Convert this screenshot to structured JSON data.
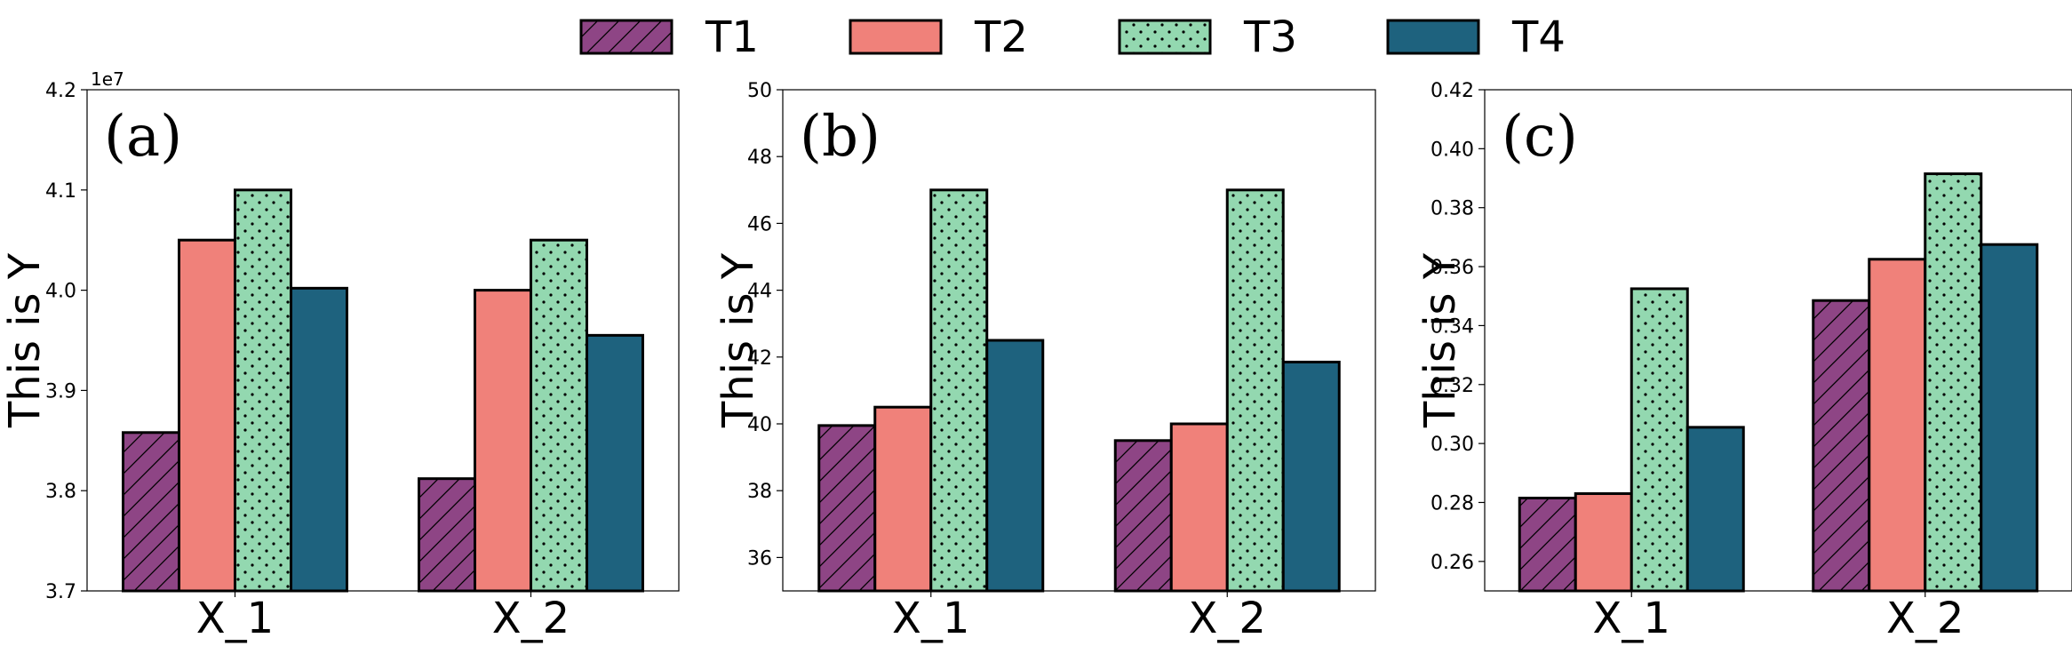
{
  "colors": {
    "T1": "#8e4585",
    "T2": "#f0817a",
    "T3": "#93d8b0",
    "T4": "#1e627e",
    "edge": "#000000"
  },
  "legend": [
    {
      "name": "T1",
      "hatch": "diagonal"
    },
    {
      "name": "T2",
      "hatch": "none"
    },
    {
      "name": "T3",
      "hatch": "dots"
    },
    {
      "name": "T4",
      "hatch": "none"
    }
  ],
  "chart_data": [
    {
      "type": "bar",
      "panel": "(a)",
      "ylabel": "This is Y",
      "offset_text": "1e7",
      "categories": [
        "X_1",
        "X_2"
      ],
      "ylim": [
        3.7,
        4.2
      ],
      "yticks": [
        "3.7",
        "3.8",
        "3.9",
        "4.0",
        "4.1",
        "4.2"
      ],
      "series": [
        {
          "name": "T1",
          "values": [
            3.858,
            3.812
          ]
        },
        {
          "name": "T2",
          "values": [
            4.05,
            4.0
          ]
        },
        {
          "name": "T3",
          "values": [
            4.1,
            4.05
          ]
        },
        {
          "name": "T4",
          "values": [
            4.002,
            3.955
          ]
        }
      ]
    },
    {
      "type": "bar",
      "panel": "(b)",
      "ylabel": "This is Y",
      "offset_text": "",
      "categories": [
        "X_1",
        "X_2"
      ],
      "ylim": [
        35,
        50
      ],
      "yticks": [
        "36",
        "38",
        "40",
        "42",
        "44",
        "46",
        "48",
        "50"
      ],
      "series": [
        {
          "name": "T1",
          "values": [
            39.95,
            39.5
          ]
        },
        {
          "name": "T2",
          "values": [
            40.5,
            40.0
          ]
        },
        {
          "name": "T3",
          "values": [
            47.0,
            47.0
          ]
        },
        {
          "name": "T4",
          "values": [
            42.5,
            41.85
          ]
        }
      ]
    },
    {
      "type": "bar",
      "panel": "(c)",
      "ylabel": "This is Y",
      "offset_text": "",
      "categories": [
        "X_1",
        "X_2"
      ],
      "ylim": [
        0.25,
        0.42
      ],
      "yticks": [
        "0.26",
        "0.28",
        "0.30",
        "0.32",
        "0.34",
        "0.36",
        "0.38",
        "0.40",
        "0.42"
      ],
      "series": [
        {
          "name": "T1",
          "values": [
            0.2815,
            0.3485
          ]
        },
        {
          "name": "T2",
          "values": [
            0.283,
            0.3625
          ]
        },
        {
          "name": "T3",
          "values": [
            0.3525,
            0.3915
          ]
        },
        {
          "name": "T4",
          "values": [
            0.3055,
            0.3675
          ]
        }
      ]
    }
  ]
}
